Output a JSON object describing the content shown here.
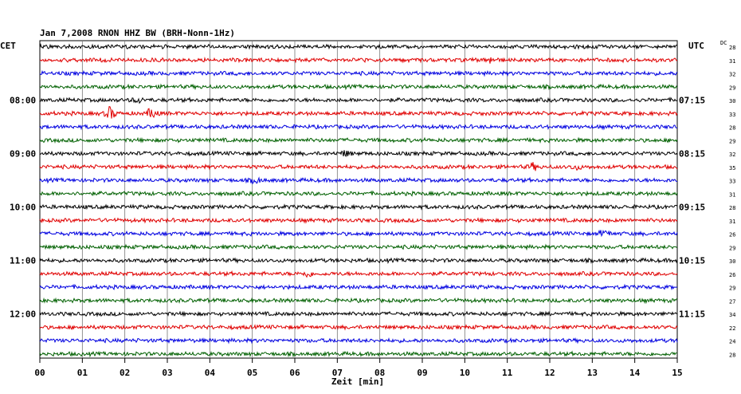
{
  "chart_data": {
    "type": "line",
    "title": "Jan 7,2008   RNON HHZ BW (BRH-Nonn-1Hz)",
    "xlabel": "Zeit [min]",
    "left_axis_label": "CET",
    "right_axis_label": "UTC",
    "dc_header": "DC",
    "x_range": [
      0,
      15
    ],
    "x_ticks": [
      "00",
      "01",
      "02",
      "03",
      "04",
      "05",
      "06",
      "07",
      "08",
      "09",
      "10",
      "11",
      "12",
      "13",
      "14",
      "15"
    ],
    "trace_colors": [
      "#000000",
      "#e00000",
      "#0000e0",
      "#006000"
    ],
    "grid": true,
    "left_hour_labels": [
      "08:00",
      "09:00",
      "10:00",
      "11:00",
      "12:00"
    ],
    "right_hour_labels": [
      "07:15",
      "08:15",
      "09:15",
      "10:15",
      "11:15"
    ],
    "traces": [
      {
        "dc": "28",
        "events": []
      },
      {
        "dc": "31",
        "events": [
          {
            "min": 10.6,
            "amp": 1.3
          }
        ]
      },
      {
        "dc": "32",
        "events": []
      },
      {
        "dc": "29",
        "events": []
      },
      {
        "dc": "30",
        "events": [
          {
            "min": 2.3,
            "amp": 1.4
          }
        ]
      },
      {
        "dc": "33",
        "events": [
          {
            "min": 1.65,
            "amp": 3.2
          },
          {
            "min": 2.65,
            "amp": 2.6
          }
        ]
      },
      {
        "dc": "28",
        "events": []
      },
      {
        "dc": "29",
        "events": []
      },
      {
        "dc": "32",
        "events": [
          {
            "min": 7.2,
            "amp": 1.4
          }
        ]
      },
      {
        "dc": "35",
        "events": [
          {
            "min": 11.6,
            "amp": 1.5
          },
          {
            "min": 12.6,
            "amp": 1.2
          }
        ]
      },
      {
        "dc": "33",
        "events": [
          {
            "min": 5.1,
            "amp": 1.5
          }
        ]
      },
      {
        "dc": "31",
        "events": []
      },
      {
        "dc": "28",
        "events": []
      },
      {
        "dc": "31",
        "events": []
      },
      {
        "dc": "26",
        "events": [
          {
            "min": 13.3,
            "amp": 1.6
          }
        ]
      },
      {
        "dc": "29",
        "events": []
      },
      {
        "dc": "30",
        "events": []
      },
      {
        "dc": "26",
        "events": [
          {
            "min": 6.3,
            "amp": 1.3
          }
        ]
      },
      {
        "dc": "29",
        "events": []
      },
      {
        "dc": "27",
        "events": []
      },
      {
        "dc": "34",
        "events": []
      },
      {
        "dc": "22",
        "events": []
      },
      {
        "dc": "24",
        "events": []
      },
      {
        "dc": "28",
        "events": []
      }
    ]
  }
}
